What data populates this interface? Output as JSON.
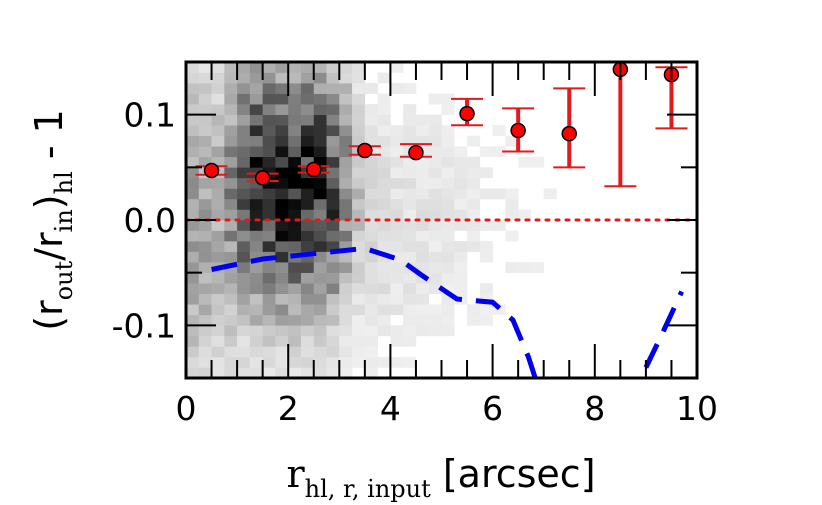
{
  "chart_data": {
    "type": "scatter",
    "xlim": [
      0,
      10
    ],
    "ylim": [
      -0.15,
      0.15
    ],
    "x_ticks": [
      0,
      2,
      4,
      6,
      8,
      10
    ],
    "x_tick_labels": [
      "0",
      "2",
      "4",
      "6",
      "8",
      "10"
    ],
    "y_ticks": [
      -0.1,
      0.0,
      0.1
    ],
    "y_tick_labels": [
      "-0.1",
      "0.0",
      "0.1"
    ],
    "xlabel": {
      "base": "r",
      "subscript": "hl, r, input",
      "suffix": " [arcsec]"
    },
    "ylabel": {
      "open": "(r",
      "sub1": "out",
      "mid": "/r",
      "sub2": "in",
      "close": ")",
      "sub3": "hl",
      "suffix": " - 1"
    },
    "grid": false,
    "reference_line": {
      "y": 0.0,
      "color": "#e31a1c",
      "style": "dotted"
    },
    "binned_points": [
      {
        "x": 0.5,
        "y": 0.047,
        "y_low": 0.043,
        "y_high": 0.051
      },
      {
        "x": 1.5,
        "y": 0.04,
        "y_low": 0.037,
        "y_high": 0.044
      },
      {
        "x": 2.5,
        "y": 0.048,
        "y_low": 0.045,
        "y_high": 0.051
      },
      {
        "x": 3.5,
        "y": 0.066,
        "y_low": 0.062,
        "y_high": 0.07
      },
      {
        "x": 4.5,
        "y": 0.064,
        "y_low": 0.06,
        "y_high": 0.072
      },
      {
        "x": 5.5,
        "y": 0.101,
        "y_low": 0.09,
        "y_high": 0.115
      },
      {
        "x": 6.5,
        "y": 0.085,
        "y_low": 0.065,
        "y_high": 0.106
      },
      {
        "x": 7.5,
        "y": 0.082,
        "y_low": 0.05,
        "y_high": 0.125
      },
      {
        "x": 8.5,
        "y": 0.143,
        "y_low": 0.032,
        "y_high": 0.16
      },
      {
        "x": 9.5,
        "y": 0.138,
        "y_low": 0.087,
        "y_high": 0.145
      }
    ],
    "dashed_curve": {
      "color": "#0000ee",
      "x": [
        0.5,
        1.5,
        2.5,
        3.5,
        4.2,
        4.6,
        5.3,
        6.0,
        6.4,
        6.7,
        6.9
      ],
      "y": [
        -0.047,
        -0.037,
        -0.032,
        -0.027,
        -0.038,
        -0.052,
        -0.075,
        -0.078,
        -0.095,
        -0.13,
        -0.16
      ]
    },
    "dashed_curve_right": {
      "color": "#0000ee",
      "x": [
        9.0,
        9.3,
        9.7
      ],
      "y": [
        -0.14,
        -0.11,
        -0.068
      ]
    },
    "point_color": "#ff0000",
    "errorbar_color": "#e31a1c",
    "density_grid": {
      "x_bins": 40,
      "y_bins": 30
    }
  }
}
